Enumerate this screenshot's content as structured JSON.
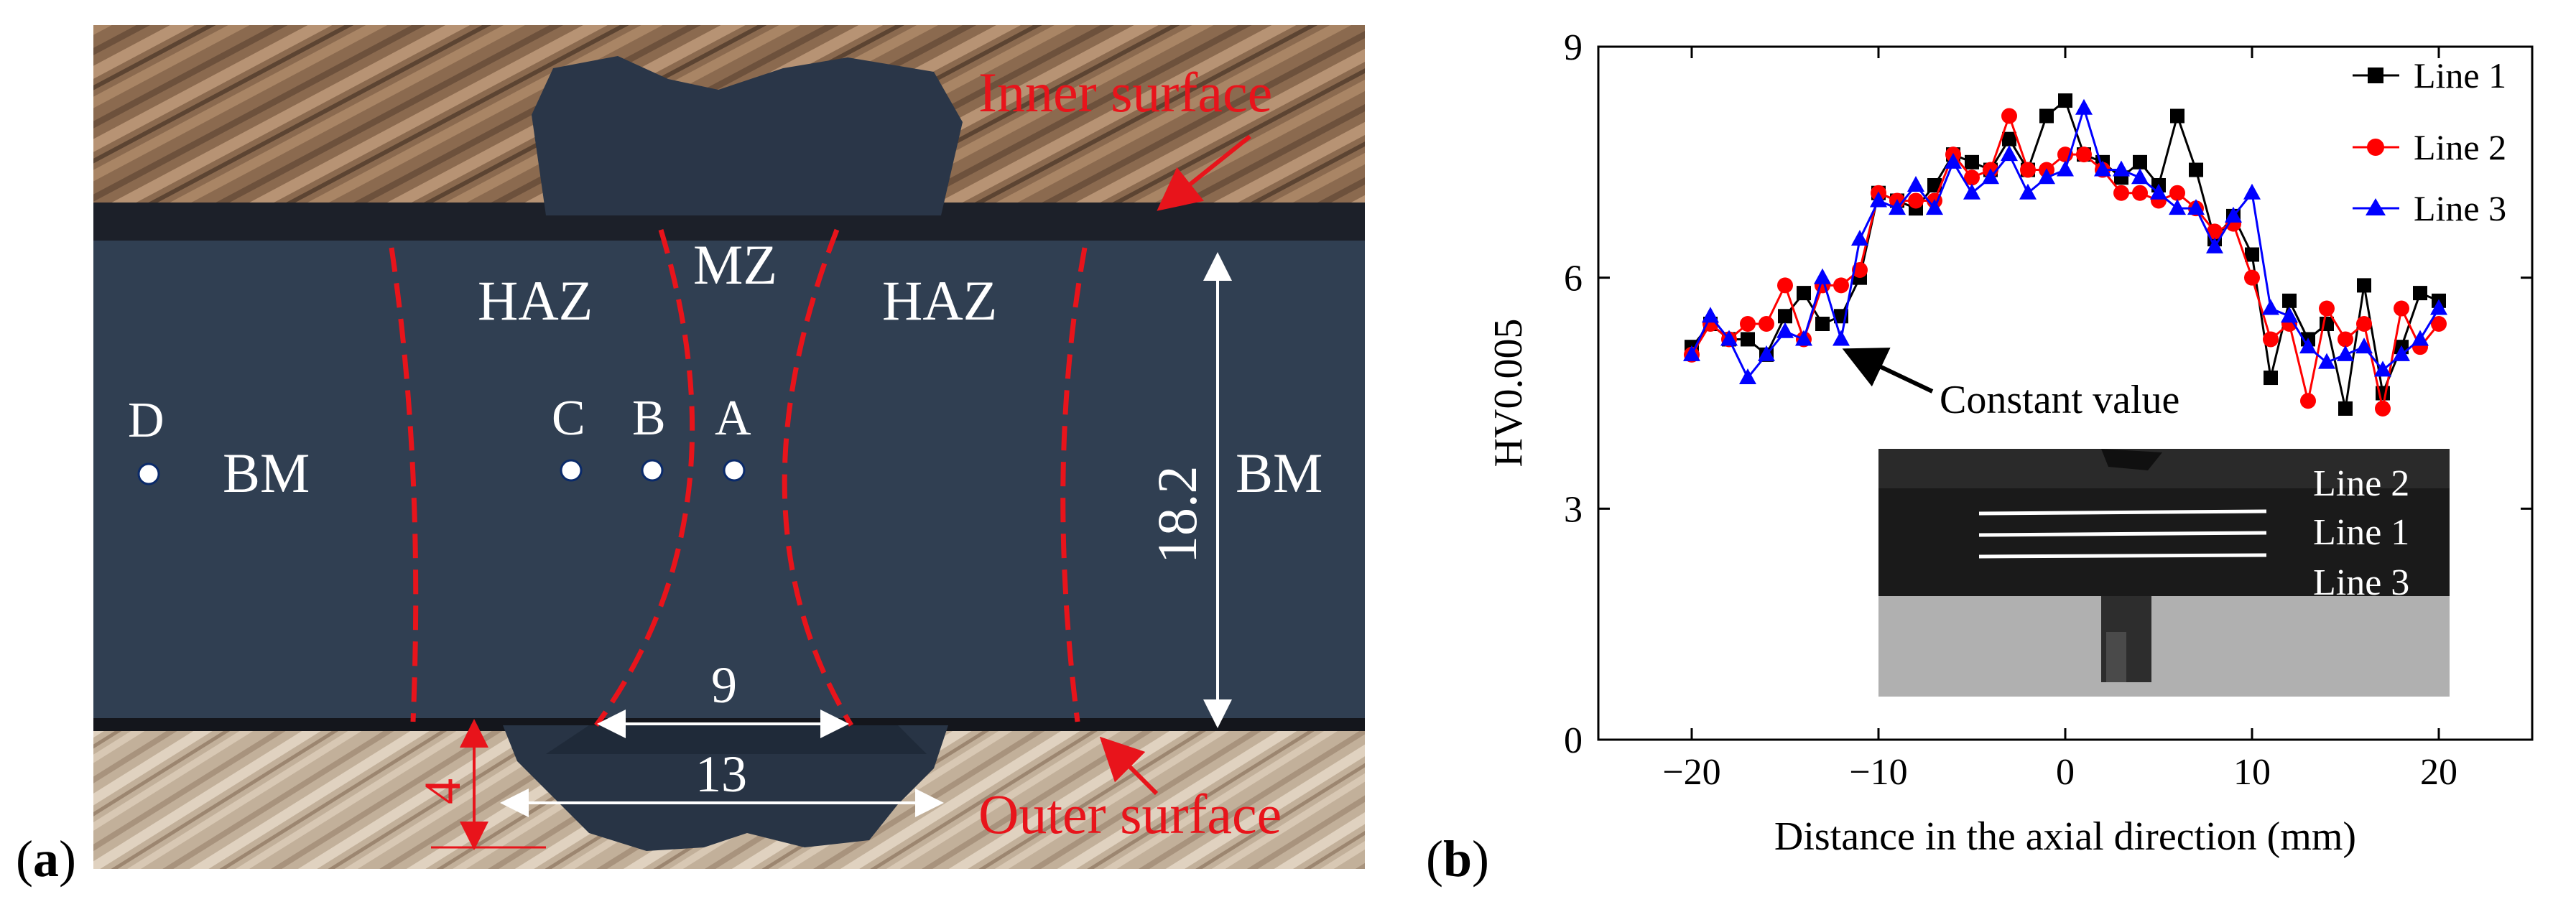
{
  "panel_a": {
    "label_open": "(",
    "label_letter": "a",
    "label_close": ")",
    "zones": {
      "haz_left": "HAZ",
      "mz": "MZ",
      "haz_right": "HAZ",
      "bm_left": "BM",
      "bm_right": "BM"
    },
    "points": [
      "D",
      "C",
      "B",
      "A"
    ],
    "surfaces": {
      "inner": "Inner surface",
      "outer": "Outer surface"
    },
    "dimensions": {
      "thickness": "18.2",
      "inner_width": "9",
      "outer_width": "13",
      "cap_height": "4"
    },
    "colors": {
      "annotation_red": "#e8141b",
      "steel_dark": "#2d3a4c",
      "wood": "#8a6a4e"
    }
  },
  "panel_b": {
    "label_open": "(",
    "label_letter": "b",
    "label_close": ")",
    "annotation": "Constant value",
    "inset_labels": [
      "Line 2",
      "Line 1",
      "Line 3"
    ]
  },
  "chart_data": {
    "type": "line",
    "xlabel": "Distance in the axial direction (mm)",
    "ylabel": "HV0.005",
    "xlim": [
      -25,
      25
    ],
    "ylim": [
      0,
      9
    ],
    "xticks": [
      -20,
      -10,
      0,
      10,
      20
    ],
    "yticks": [
      0,
      3,
      6,
      9
    ],
    "xtick_labels": [
      "−20",
      "−10",
      "0",
      "10",
      "20"
    ],
    "ytick_labels": [
      "0",
      "3",
      "6",
      "9"
    ],
    "legend_position": "top-right",
    "x": [
      -20,
      -19,
      -18,
      -17,
      -16,
      -15,
      -14,
      -13,
      -12,
      -11,
      -10,
      -9,
      -8,
      -7,
      -6,
      -5,
      -4,
      -3,
      -2,
      -1,
      0,
      1,
      2,
      3,
      4,
      5,
      6,
      7,
      8,
      9,
      10,
      11,
      12,
      13,
      14,
      15,
      16,
      17,
      18,
      19,
      20
    ],
    "series": [
      {
        "name": "Line 1",
        "color": "#000000",
        "marker": "square",
        "values": [
          5.1,
          5.4,
          5.2,
          5.2,
          5.0,
          5.5,
          5.8,
          5.4,
          5.5,
          6.0,
          7.1,
          7.0,
          6.9,
          7.2,
          7.6,
          7.5,
          7.4,
          7.8,
          7.4,
          8.1,
          8.3,
          7.6,
          7.5,
          7.3,
          7.5,
          7.2,
          8.1,
          7.4,
          6.5,
          6.8,
          6.3,
          4.7,
          5.7,
          5.2,
          5.4,
          4.3,
          5.9,
          4.5,
          5.1,
          5.8,
          5.7
        ]
      },
      {
        "name": "Line 2",
        "color": "#ff0000",
        "marker": "circle",
        "values": [
          5.0,
          5.4,
          5.2,
          5.4,
          5.4,
          5.9,
          5.2,
          5.9,
          5.9,
          6.1,
          7.1,
          7.0,
          7.0,
          7.0,
          7.6,
          7.3,
          7.4,
          8.1,
          7.4,
          7.4,
          7.6,
          7.6,
          7.4,
          7.1,
          7.1,
          7.0,
          7.1,
          6.9,
          6.6,
          6.7,
          6.0,
          5.2,
          5.4,
          4.4,
          5.6,
          5.2,
          5.4,
          4.3,
          5.6,
          5.1,
          5.4
        ]
      },
      {
        "name": "Line 3",
        "color": "#0000ff",
        "marker": "triangle",
        "values": [
          5.0,
          5.5,
          5.2,
          4.7,
          5.0,
          5.3,
          5.2,
          6.0,
          5.2,
          6.5,
          7.0,
          6.9,
          7.2,
          6.9,
          7.5,
          7.1,
          7.3,
          7.6,
          7.1,
          7.3,
          7.4,
          8.2,
          7.4,
          7.4,
          7.3,
          7.1,
          6.9,
          6.9,
          6.4,
          6.8,
          7.1,
          5.6,
          5.5,
          5.1,
          4.9,
          5.0,
          5.1,
          4.8,
          5.0,
          5.2,
          5.6
        ]
      }
    ]
  }
}
